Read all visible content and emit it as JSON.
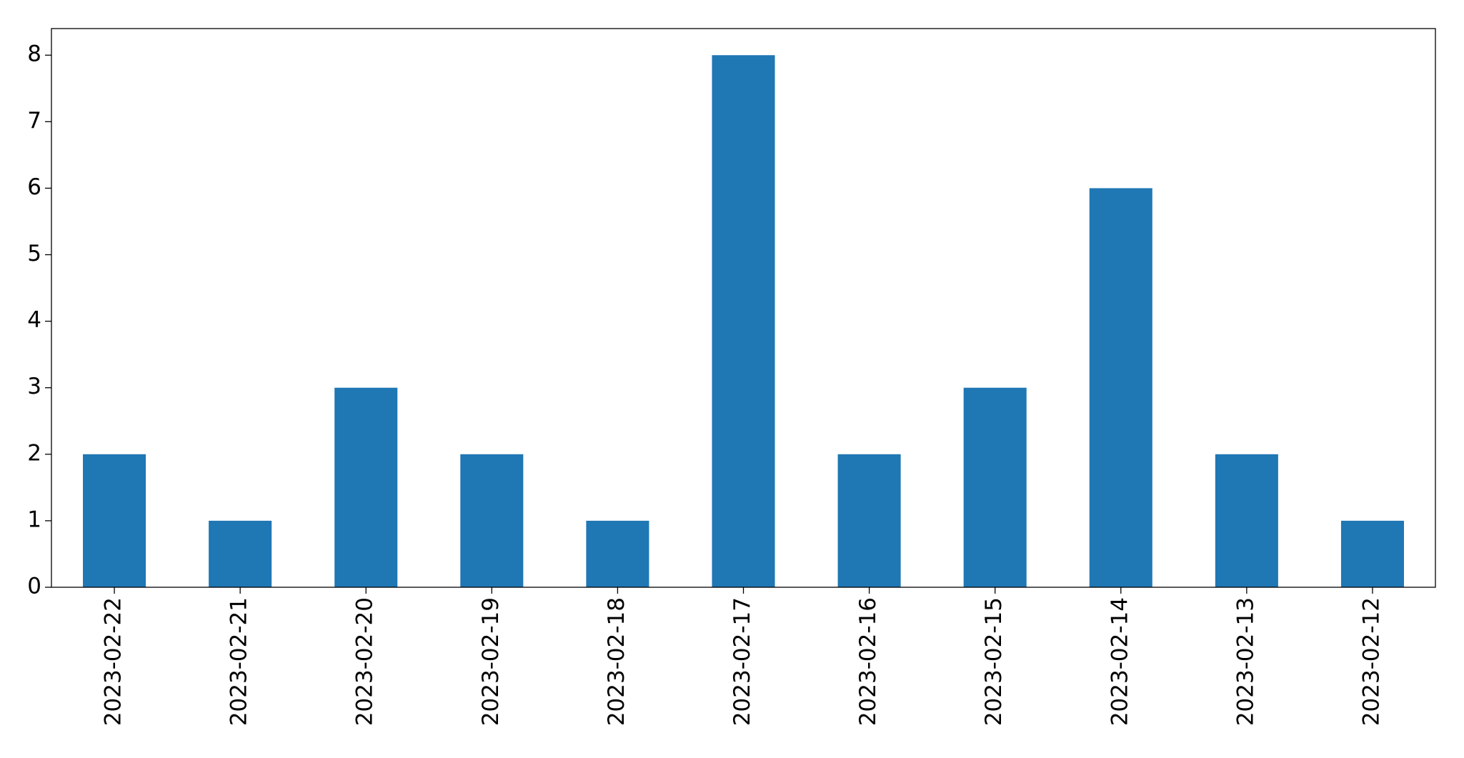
{
  "chart_data": {
    "type": "bar",
    "categories": [
      "2023-02-22",
      "2023-02-21",
      "2023-02-20",
      "2023-02-19",
      "2023-02-18",
      "2023-02-17",
      "2023-02-16",
      "2023-02-15",
      "2023-02-14",
      "2023-02-13",
      "2023-02-12"
    ],
    "values": [
      2,
      1,
      3,
      2,
      1,
      8,
      2,
      3,
      6,
      2,
      1
    ],
    "color": "#1f77b4",
    "ylim": [
      0,
      8.4
    ],
    "yticks": [
      0,
      1,
      2,
      3,
      4,
      5,
      6,
      7,
      8
    ],
    "grid": false
  }
}
